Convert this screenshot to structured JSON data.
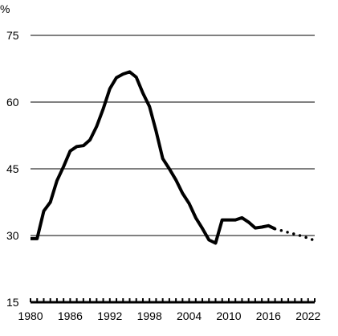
{
  "chart_data": {
    "type": "line",
    "title": "",
    "xlabel": "",
    "ylabel": "%",
    "xlim": [
      1980,
      2023
    ],
    "ylim": [
      15,
      75
    ],
    "x_ticks": [
      1980,
      1986,
      1992,
      1998,
      2004,
      2010,
      2016,
      2022
    ],
    "y_ticks": [
      15,
      30,
      45,
      60,
      75
    ],
    "grid": "horizontal",
    "series": [
      {
        "style": "solid",
        "x": [
          1980,
          1981,
          1982,
          1983,
          1984,
          1985,
          1986,
          1987,
          1988,
          1989,
          1990,
          1991,
          1992,
          1993,
          1994,
          1995,
          1996,
          1997,
          1998,
          1999,
          2000,
          2001,
          2002,
          2003,
          2004,
          2005,
          2006,
          2007,
          2008,
          2009,
          2010,
          2011,
          2012,
          2013,
          2014,
          2015,
          2016,
          2017
        ],
        "y": [
          29.3,
          29.3,
          35.5,
          37.5,
          42.3,
          45.5,
          49.0,
          50.0,
          50.2,
          51.5,
          54.5,
          58.5,
          63.0,
          65.5,
          66.3,
          66.8,
          65.6,
          62.0,
          59.0,
          53.5,
          47.3,
          45.0,
          42.5,
          39.5,
          37.2,
          34.0,
          31.6,
          29.0,
          28.3,
          33.5,
          33.5,
          33.5,
          34.0,
          33.0,
          31.7,
          31.9,
          32.2,
          31.5
        ]
      },
      {
        "style": "dotted",
        "x": [
          2017,
          2018,
          2019,
          2020,
          2021,
          2022,
          2023
        ],
        "y": [
          31.5,
          31.1,
          30.7,
          30.3,
          29.9,
          29.4,
          28.9
        ]
      }
    ]
  }
}
